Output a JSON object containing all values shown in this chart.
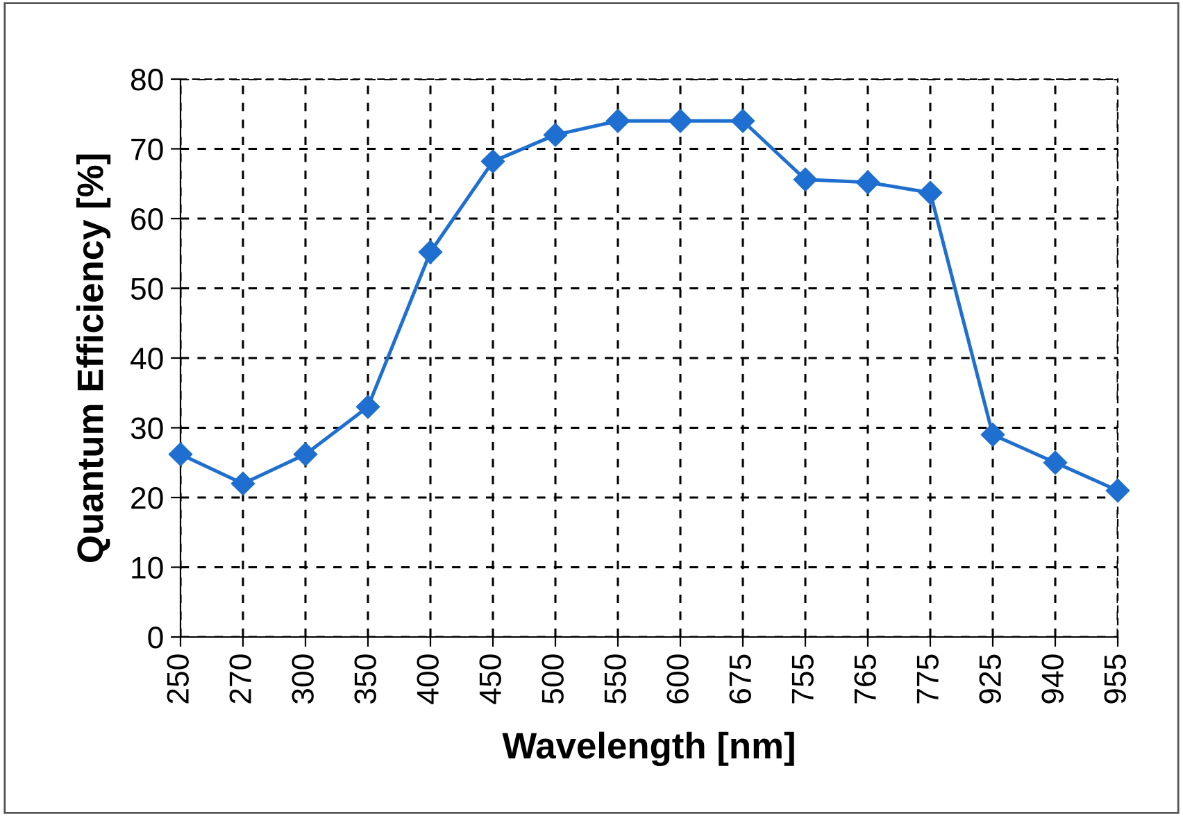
{
  "chart_data": {
    "type": "line",
    "xlabel": "Wavelength [nm]",
    "ylabel": "Quantum Efficiency [%]",
    "categories": [
      "250",
      "270",
      "300",
      "350",
      "400",
      "450",
      "500",
      "550",
      "600",
      "675",
      "755",
      "765",
      "775",
      "925",
      "940",
      "955"
    ],
    "series": [
      {
        "color": "#1f6fd0",
        "values": [
          26.2,
          22,
          26.2,
          33,
          55.2,
          68.2,
          72,
          74,
          74,
          74,
          65.6,
          65.2,
          63.7,
          29,
          25,
          21
        ]
      }
    ],
    "ylim": [
      0,
      80
    ],
    "yticks": [
      0,
      10,
      20,
      30,
      40,
      50,
      60,
      70,
      80
    ],
    "grid": true,
    "marker": "diamond",
    "line_style": "solid"
  }
}
